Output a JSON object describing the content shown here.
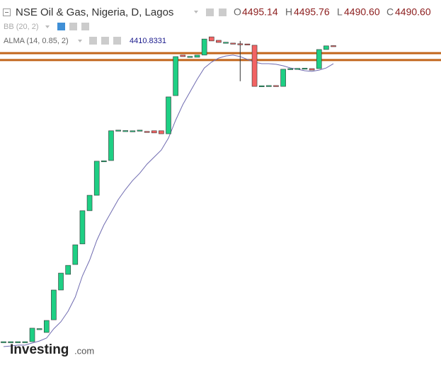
{
  "legend": {
    "title": "NSE Oil & Gas, Nigeria, D, Lagos",
    "o_label": "O",
    "o_value": "4495.14",
    "h_label": "H",
    "h_value": "4495.76",
    "l_label": "L",
    "l_value": "4490.60",
    "c_label": "C",
    "c_value": "4490.60",
    "bb": "BB (20, 2)",
    "alma": "ALMA (14, 0.85, 2)",
    "alma_value": "4410.8331"
  },
  "logo": {
    "brand": "Investing",
    "suffix": ".com"
  },
  "chart_data": {
    "type": "candlestick",
    "ylim": [
      3005.2,
      4708
    ],
    "up_color": "#1ecf84",
    "down_color": "#f26363",
    "line_color": "#6f6bb0",
    "hline_color": "#c2661c",
    "open": [
      3114,
      3114,
      3114,
      3114,
      3114,
      3173,
      3157,
      3216,
      3355,
      3428,
      3474,
      3570,
      3725,
      3797,
      3954,
      3959,
      4100,
      4098,
      4097,
      4100,
      4095,
      4098,
      4098,
      4084,
      4262,
      4451,
      4444,
      4441,
      4451,
      4536,
      4520,
      4510,
      4507,
      4504,
      4503,
      4497,
      4305,
      4308,
      4309,
      4305,
      4386,
      4388,
      4388,
      4388,
      4388,
      4477,
      4495.14
    ],
    "close": [
      3114,
      3114,
      3114,
      3114,
      3177,
      3175,
      3213,
      3355,
      3434,
      3470,
      3566,
      3725,
      3797,
      3956,
      3958,
      4098,
      4101,
      4099,
      4098,
      4101,
      4094,
      4088,
      4084,
      4256,
      4444,
      4444,
      4445,
      4451,
      4526,
      4517,
      4510,
      4511,
      4506,
      4503,
      4500,
      4305,
      4308,
      4309,
      4308,
      4385,
      4388,
      4389,
      4390,
      4381,
      4477,
      4494,
      4490.6
    ],
    "high": [
      null,
      null,
      null,
      null,
      null,
      null,
      null,
      null,
      null,
      null,
      null,
      null,
      null,
      null,
      null,
      null,
      null,
      null,
      null,
      null,
      null,
      null,
      null,
      null,
      null,
      null,
      null,
      null,
      null,
      null,
      null,
      null,
      null,
      4517,
      null,
      null,
      null,
      null,
      null,
      null,
      null,
      null,
      null,
      null,
      null,
      null,
      4495.76
    ],
    "low": [
      null,
      null,
      null,
      null,
      null,
      null,
      null,
      null,
      null,
      null,
      null,
      null,
      null,
      null,
      null,
      null,
      null,
      null,
      null,
      null,
      null,
      null,
      null,
      null,
      null,
      null,
      null,
      null,
      null,
      null,
      null,
      null,
      null,
      4329,
      null,
      null,
      null,
      null,
      null,
      null,
      null,
      null,
      null,
      null,
      null,
      null,
      4490.6
    ],
    "alma": [
      3091,
      3094,
      3098,
      3098,
      3108,
      3117,
      3131,
      3174,
      3207,
      3256,
      3322,
      3421,
      3494,
      3586,
      3659,
      3718,
      3777,
      3824,
      3866,
      3900,
      3942,
      3975,
      4008,
      4064,
      4147,
      4220,
      4279,
      4338,
      4391,
      4418,
      4437,
      4447,
      4451,
      4444,
      4431,
      4418,
      4411,
      4411,
      4408,
      4401,
      4391,
      4385,
      4378,
      4375,
      4381,
      4391,
      4410.83
    ],
    "hlines": [
      4460,
      4428
    ]
  }
}
